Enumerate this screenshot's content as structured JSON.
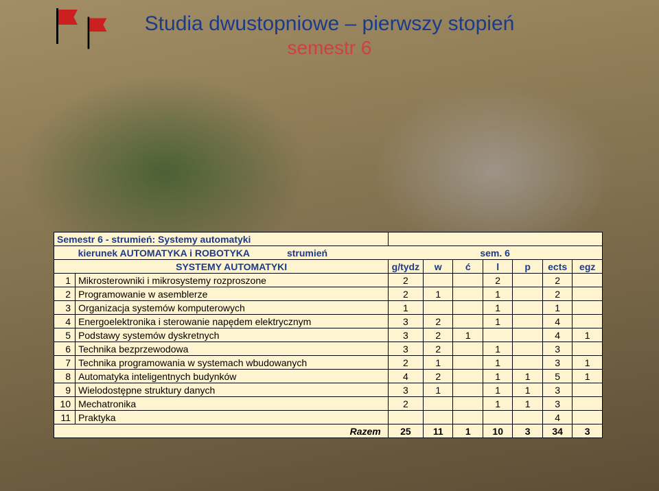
{
  "header": {
    "title_main": "Studia dwustopniowe – pierwszy stopień",
    "title_sub": "semestr 6"
  },
  "table": {
    "caption_left": "Semestr 6 - strumień: Systemy automatyki",
    "row2_left": "kierunek AUTOMATYKA i ROBOTYKA",
    "row2_mid": "strumień",
    "row2_right": "sem. 6",
    "row3_label": "SYSTEMY AUTOMATYKI",
    "cols": [
      "g/tydz",
      "w",
      "ć",
      "l",
      "p",
      "ects",
      "egz"
    ],
    "rows": [
      {
        "n": "1",
        "name": "Mikrosterowniki i mikrosystemy rozproszone",
        "v": [
          "2",
          "",
          "",
          "2",
          "",
          "2",
          ""
        ]
      },
      {
        "n": "2",
        "name": "Programowanie w asemblerze",
        "v": [
          "2",
          "1",
          "",
          "1",
          "",
          "2",
          ""
        ]
      },
      {
        "n": "3",
        "name": "Organizacja systemów komputerowych",
        "v": [
          "1",
          "",
          "",
          "1",
          "",
          "1",
          ""
        ]
      },
      {
        "n": "4",
        "name": "Energoelektronika i sterowanie napędem elektrycznym",
        "v": [
          "3",
          "2",
          "",
          "1",
          "",
          "4",
          ""
        ]
      },
      {
        "n": "5",
        "name": "Podstawy systemów dyskretnych",
        "v": [
          "3",
          "2",
          "1",
          "",
          "",
          "4",
          "1"
        ]
      },
      {
        "n": "6",
        "name": "Technika bezprzewodowa",
        "v": [
          "3",
          "2",
          "",
          "1",
          "",
          "3",
          ""
        ]
      },
      {
        "n": "7",
        "name": "Technika programowania w systemach wbudowanych",
        "v": [
          "2",
          "1",
          "",
          "1",
          "",
          "3",
          "1"
        ]
      },
      {
        "n": "8",
        "name": "Automatyka inteligentnych budynków",
        "v": [
          "4",
          "2",
          "",
          "1",
          "1",
          "5",
          "1"
        ]
      },
      {
        "n": "9",
        "name": "Wielodostępne struktury danych",
        "v": [
          "3",
          "1",
          "",
          "1",
          "1",
          "3",
          ""
        ]
      },
      {
        "n": "10",
        "name": "Mechatronika",
        "v": [
          "2",
          "",
          "",
          "1",
          "1",
          "3",
          ""
        ]
      },
      {
        "n": "11",
        "name": "Praktyka",
        "v": [
          "",
          "",
          "",
          "",
          "",
          "4",
          ""
        ]
      }
    ],
    "sum_label": "Razem",
    "sum": [
      "25",
      "11",
      "1",
      "10",
      "3",
      "34",
      "3"
    ]
  },
  "colors": {
    "title_main": "#1a3a8a",
    "title_sub": "#d04040",
    "table_bg": "#fff4d0",
    "flag": "#cc2020"
  }
}
